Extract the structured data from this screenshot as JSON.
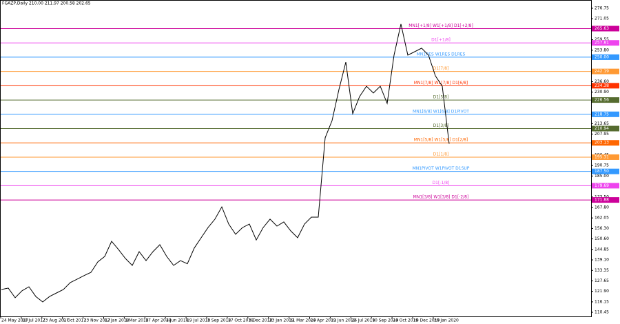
{
  "chart_data": {
    "type": "line",
    "title": "FGAZP,Daily 210.00 211.97 200.58 202.65",
    "color": "#000000",
    "values": [
      122.9,
      123.7,
      118.4,
      122.2,
      124.4,
      119.1,
      116.1,
      119.1,
      121.0,
      122.9,
      126.7,
      128.6,
      130.5,
      132.3,
      138.0,
      141.0,
      149.3,
      144.8,
      139.9,
      136.1,
      143.6,
      138.7,
      143.6,
      147.4,
      141.0,
      136.1,
      138.7,
      137.0,
      145.6,
      151.2,
      156.8,
      161.4,
      168.1,
      158.7,
      153.1,
      156.8,
      158.7,
      150.0,
      156.8,
      161.4,
      157.6,
      159.9,
      155.0,
      151.2,
      158.7,
      162.5,
      162.5,
      205.9,
      215.3,
      232.3,
      247.3,
      219.1,
      228.5,
      234.1,
      230.4,
      234.1,
      224.7,
      251.1,
      268.1,
      251.1,
      253.0,
      254.9,
      251.1,
      239.8,
      234.1,
      202.65
    ],
    "xticks": [
      "24 May 2017",
      "10 Jul 2017",
      "23 Aug 2017",
      "9 Oct 2017",
      "23 Nov 2017",
      "12 Jan 2018",
      "1 Mar 2018",
      "17 Apr 2018",
      "4 Jun 2018",
      "19 Jul 2018",
      "3 Sep 2018",
      "17 Oct 2018",
      "3 Dec 2018",
      "23 Jan 2019",
      "11 Mar 2019",
      "24 Apr 2019",
      "11 Jun 2019",
      "26 Jul 2019",
      "10 Sep 2019",
      "24 Oct 2019",
      "10 Dec 2019",
      "30 Jan 2020"
    ],
    "ylim": [
      110.45,
      276.75
    ],
    "yticks": [
      110.45,
      116.15,
      {
        "value": 121.9,
        "label": "121.90"
      },
      127.65,
      133.35,
      {
        "value": 139.1,
        "label": "139.10"
      },
      144.85,
      {
        "value": 150.6,
        "label": "150.60"
      },
      {
        "value": 156.3,
        "label": "156.30"
      },
      162.05,
      {
        "value": 167.8,
        "label": "167.80"
      },
      {
        "value": 173.5,
        "label": "173.50"
      },
      {
        "value": 185,
        "label": "185.00"
      },
      190.75,
      196.45,
      207.95,
      213.65,
      {
        "value": 230.9,
        "label": "230.90"
      },
      {
        "value": 236.6,
        "label": "236.60"
      },
      {
        "value": 253.8,
        "label": "253.80"
      },
      259.55,
      271.05,
      276.75
    ],
    "levels": [
      {
        "value": 265.63,
        "text": "MN1[+1/8] W1[+1/8] D1[+2/8]",
        "color": "#cc0099"
      },
      {
        "value": 257.81,
        "text": "D1[+1/8]",
        "color": "#ee44ee"
      },
      {
        "value": 250,
        "label": "250.00",
        "text": "MN1RES W1RES D1RES",
        "color": "#3399ff"
      },
      {
        "value": 242.19,
        "text": "D1[7/8]",
        "color": "#ff9933"
      },
      {
        "value": 234.38,
        "text": "MN1[7/8] W1[7/8] D1[6/8]",
        "color": "#ff3300"
      },
      {
        "value": 226.56,
        "text": "D1[5/8]",
        "color": "#556b2f"
      },
      {
        "value": 218.75,
        "text": "MN1[6/8] W1[6/8] D1PIVOT",
        "color": "#3399ff"
      },
      {
        "value": 210.94,
        "text": "D1[3/8]",
        "color": "#556b2f"
      },
      {
        "value": 203.13,
        "text": "MN1[5/8] W1[5/8] D1[2/8]",
        "color": "#ff6600"
      },
      {
        "value": 195.31,
        "text": "D1[1/8]",
        "color": "#ff9933"
      },
      {
        "value": 187.5,
        "label": "187.50",
        "text": "MN1PIVOT W1PIVOT D1SUP",
        "color": "#3399ff"
      },
      {
        "value": 179.69,
        "text": "D1[-1/8]",
        "color": "#ee44ee"
      },
      {
        "value": 171.88,
        "text": "MN1[3/8] W1[3/8] D1[-2/8]",
        "color": "#cc0099"
      }
    ]
  }
}
